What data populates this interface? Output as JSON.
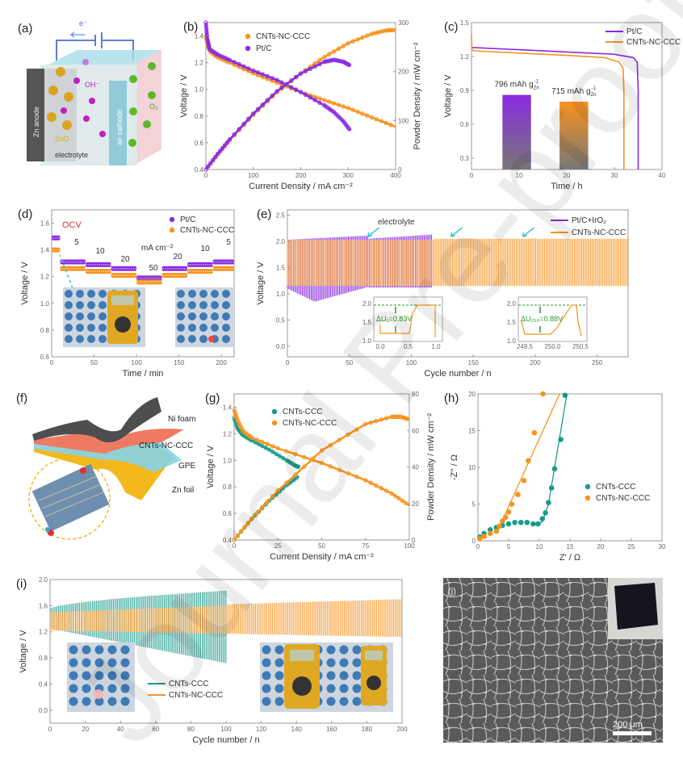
{
  "colors": {
    "orange": "#f7931e",
    "purple": "#8a2be2",
    "teal": "#1a9a8a",
    "axis": "#888888",
    "red_label": "#e03030",
    "green_ann": "#2a9a2a",
    "cyan_arrow": "#35c8e0"
  },
  "watermark": "Journal Pre-proof",
  "panel_a": {
    "label": "(a)",
    "electron": "e⁻",
    "zn_anode": "Zn anode",
    "oh": "OH⁻",
    "zno": "ZnO",
    "air_cathode": "air cathode",
    "o2": "O₂",
    "electrolyte": "electrolyte"
  },
  "panel_f": {
    "label": "(f)",
    "layers": [
      "Ni foam",
      "CNTs-NC-CCC",
      "GPE",
      "Zn foil"
    ]
  },
  "panel_j": {
    "label": "(j)",
    "scale_bar": "200 μm"
  },
  "chart_data": [
    {
      "id": "b",
      "label": "(b)",
      "type": "line",
      "xlabel": "Current Density / mA cm⁻²",
      "ylabel": "Voltage / V",
      "y2label": "Powder Density / mW cm⁻²",
      "xlim": [
        0,
        400
      ],
      "ylim": [
        0.4,
        1.5
      ],
      "y2lim": [
        0,
        300
      ],
      "xticks": [
        "0",
        "100",
        "200",
        "300",
        "400"
      ],
      "yticks": [
        "0.4",
        "0.6",
        "0.8",
        "1.0",
        "1.2",
        "1.4"
      ],
      "y2ticks": [
        "0",
        "100",
        "200",
        "300"
      ],
      "legend": [
        "CNTs-NC-CCC",
        "Pt/C"
      ],
      "series": [
        {
          "name": "CNTs-NC-CCC voltage",
          "axis": "y",
          "color": "orange",
          "x": [
            0,
            5,
            10,
            25,
            50,
            100,
            150,
            200,
            250,
            300,
            350,
            400
          ],
          "y": [
            1.4,
            1.32,
            1.28,
            1.24,
            1.2,
            1.12,
            1.05,
            0.98,
            0.92,
            0.86,
            0.79,
            0.72
          ]
        },
        {
          "name": "Pt/C voltage",
          "axis": "y",
          "color": "purple",
          "x": [
            0,
            3,
            8,
            25,
            50,
            100,
            150,
            200,
            250,
            270,
            290,
            305
          ],
          "y": [
            1.5,
            1.38,
            1.3,
            1.26,
            1.22,
            1.14,
            1.07,
            0.98,
            0.88,
            0.83,
            0.76,
            0.69
          ]
        },
        {
          "name": "CNTs-NC-CCC power",
          "axis": "y2",
          "color": "orange",
          "x": [
            0,
            25,
            50,
            100,
            150,
            200,
            250,
            300,
            350,
            380,
            400
          ],
          "y": [
            0,
            31,
            60,
            112,
            158,
            196,
            230,
            258,
            277,
            284,
            285
          ]
        },
        {
          "name": "Pt/C power",
          "axis": "y2",
          "color": "purple",
          "x": [
            0,
            25,
            50,
            100,
            150,
            200,
            250,
            270,
            290,
            305
          ],
          "y": [
            0,
            32,
            61,
            114,
            160,
            196,
            220,
            224,
            220,
            212
          ]
        }
      ]
    },
    {
      "id": "c",
      "label": "(c)",
      "type": "line",
      "xlabel": "Time / h",
      "ylabel": "Voltage / V",
      "xlim": [
        0,
        40
      ],
      "ylim": [
        0.2,
        1.5
      ],
      "xticks": [
        "0",
        "10",
        "20",
        "30",
        "40"
      ],
      "yticks": [
        "0.3",
        "0.6",
        "0.9",
        "1.2",
        "1.5"
      ],
      "legend": [
        "Pt/C",
        "CNTs-NC-CCC"
      ],
      "series": [
        {
          "name": "Pt/C",
          "color": "purple",
          "x": [
            0,
            10,
            20,
            30,
            34,
            34.8,
            35,
            35
          ],
          "y": [
            1.28,
            1.26,
            1.24,
            1.22,
            1.19,
            1.15,
            0.9,
            0.2
          ]
        },
        {
          "name": "CNTs-NC-CCC",
          "color": "orange",
          "x": [
            0,
            0.1,
            0.5,
            10,
            20,
            28,
            31,
            31.8,
            32,
            32
          ],
          "y": [
            1.4,
            1.26,
            1.25,
            1.23,
            1.21,
            1.19,
            1.15,
            1.1,
            0.9,
            0.2
          ]
        }
      ],
      "bars": [
        {
          "label": "796 mAh g",
          "sub": "Zn",
          "sup": "-1",
          "x": 9.5,
          "value": 0.86,
          "color": "purple"
        },
        {
          "label": "715 mAh g",
          "sub": "Zn",
          "sup": "-1",
          "x": 21.5,
          "value": 0.8,
          "color": "orange"
        }
      ]
    },
    {
      "id": "d",
      "label": "(d)",
      "type": "scatter",
      "xlabel": "Time / min",
      "ylabel": "Voltage / V",
      "xlim": [
        0,
        215
      ],
      "ylim": [
        0.6,
        1.7
      ],
      "xticks": [
        "0",
        "50",
        "100",
        "150",
        "200"
      ],
      "yticks": [
        "0.6",
        "0.8",
        "1.0",
        "1.2",
        "1.4",
        "1.6"
      ],
      "legend": [
        "Pt/C",
        "CNTs-NC-CCC"
      ],
      "annotations": {
        "ocv": "OCV",
        "unit": "mA cm⁻²",
        "steps": [
          "5",
          "10",
          "20",
          "50",
          "20",
          "10",
          "5"
        ]
      },
      "segments_x": [
        [
          0,
          10
        ],
        [
          10,
          40
        ],
        [
          40,
          70
        ],
        [
          70,
          100
        ],
        [
          100,
          130
        ],
        [
          130,
          160
        ],
        [
          160,
          190
        ],
        [
          190,
          215
        ]
      ],
      "series": [
        {
          "name": "Pt/C",
          "color": "purple",
          "y": [
            1.49,
            1.31,
            1.29,
            1.26,
            1.19,
            1.26,
            1.29,
            1.31
          ]
        },
        {
          "name": "CNTs-NC-CCC",
          "color": "orange",
          "y": [
            1.4,
            1.26,
            1.24,
            1.21,
            1.16,
            1.21,
            1.24,
            1.26
          ]
        }
      ]
    },
    {
      "id": "e",
      "label": "(e)",
      "type": "line",
      "xlabel": "Cycle number / n",
      "ylabel": "Voltage / V",
      "xlim": [
        0,
        275
      ],
      "ylim": [
        -0.2,
        2.6
      ],
      "xticks": [
        "0",
        "50",
        "100",
        "150",
        "200",
        "250"
      ],
      "yticks": [
        "0.0",
        "0.5",
        "1.0",
        "1.5",
        "2.0",
        "2.5"
      ],
      "legend": [
        "Pt/C+IrO₂",
        "CNTs-NC-CCC"
      ],
      "annotation": "electrolyte",
      "arrow_cycles": [
        65,
        132,
        190
      ],
      "series": [
        {
          "name": "Pt/C+IrO₂",
          "color": "purple",
          "cycles": [
            0,
            117
          ],
          "charge_top": [
            2.03,
            2.12
          ],
          "discharge_bottom_min": 0.85
        },
        {
          "name": "CNTs-NC-CCC",
          "color": "orange",
          "cycles": [
            0,
            275
          ],
          "charge_top": [
            2.05,
            2.05
          ],
          "discharge_bottom": [
            1.15,
            1.15
          ]
        }
      ],
      "insets": [
        {
          "xticks": [
            "0.0",
            "0.5",
            "1.0"
          ],
          "yticks": [
            "1.0",
            "1.5",
            "2.0"
          ],
          "text": "ΔU₁=0.83V"
        },
        {
          "xticks": [
            "249.5",
            "250.0",
            "250.5"
          ],
          "yticks": [
            "1.0",
            "1.5",
            "2.0"
          ],
          "text": "ΔU₂₅₀=0.88V"
        }
      ]
    },
    {
      "id": "g",
      "label": "(g)",
      "type": "line",
      "xlabel": "Current Density / mA cm⁻²",
      "ylabel": "Voltage / V",
      "y2label": "Powder Density / mW cm⁻²",
      "xlim": [
        0,
        100
      ],
      "ylim": [
        0.4,
        1.5
      ],
      "y2lim": [
        0,
        80
      ],
      "xticks": [
        "0",
        "25",
        "50",
        "75",
        "100"
      ],
      "yticks": [
        "0.4",
        "0.6",
        "0.8",
        "1.0",
        "1.2",
        "1.4"
      ],
      "y2ticks": [
        "0",
        "20",
        "40",
        "60",
        "80"
      ],
      "legend": [
        "CNTs-CCC",
        "CNTs-NC-CCC"
      ],
      "series": [
        {
          "name": "CNTs-CCC voltage",
          "axis": "y",
          "color": "teal",
          "x": [
            0,
            2,
            5,
            10,
            20,
            30,
            35,
            37
          ],
          "y": [
            1.32,
            1.24,
            1.19,
            1.15,
            1.08,
            1.0,
            0.96,
            0.95
          ]
        },
        {
          "name": "CNTs-NC-CCC voltage",
          "axis": "y",
          "color": "orange",
          "x": [
            0,
            2,
            5,
            10,
            25,
            50,
            75,
            90,
            100
          ],
          "y": [
            1.38,
            1.3,
            1.22,
            1.17,
            1.09,
            0.98,
            0.85,
            0.75,
            0.66
          ]
        },
        {
          "name": "CNTs-CCC power",
          "axis": "y2",
          "color": "teal",
          "x": [
            0,
            10,
            20,
            30,
            37
          ],
          "y": [
            0,
            11.5,
            21.5,
            30,
            35
          ]
        },
        {
          "name": "CNTs-NC-CCC power",
          "axis": "y2",
          "color": "orange",
          "x": [
            0,
            10,
            25,
            50,
            75,
            90,
            95,
            100
          ],
          "y": [
            0,
            11.7,
            27,
            49,
            63.5,
            67.5,
            67.5,
            66
          ]
        }
      ]
    },
    {
      "id": "h",
      "label": "(h)",
      "type": "scatter",
      "xlabel": "Z' / Ω",
      "ylabel": "-Z'' / Ω",
      "xlim": [
        0,
        30
      ],
      "ylim": [
        0,
        20
      ],
      "xticks": [
        "0",
        "5",
        "10",
        "15",
        "20",
        "25",
        "30"
      ],
      "yticks": [
        "0",
        "5",
        "10",
        "15",
        "20"
      ],
      "legend": [
        "CNTs-CCC",
        "CNTs-NC-CCC"
      ],
      "series": [
        {
          "name": "CNTs-CCC",
          "color": "teal",
          "x": [
            0.3,
            1,
            2,
            3,
            4,
            5,
            6,
            7,
            8,
            9,
            9.8,
            10.5,
            11,
            11.5,
            12,
            12.5,
            13.5,
            14.2
          ],
          "y": [
            0.5,
            1.0,
            1.5,
            1.8,
            2.1,
            2.3,
            2.5,
            2.5,
            2.5,
            2.3,
            2.3,
            3,
            3.8,
            5.2,
            7.2,
            9.8,
            13.8,
            19.8
          ]
        },
        {
          "name": "CNTs-NC-CCC",
          "color": "orange",
          "x": [
            0.3,
            1,
            2,
            3,
            3.5,
            4,
            4.5,
            5,
            5.5,
            6.5,
            7.5,
            8.2,
            9.2,
            10.6
          ],
          "y": [
            0.3,
            0.6,
            1.0,
            1.3,
            2.0,
            2.7,
            3.2,
            3.9,
            5.0,
            6.3,
            8.2,
            10.9,
            14.7,
            20
          ]
        }
      ],
      "fits": [
        {
          "name": "CNTs-CCC fit",
          "color": "teal",
          "x": [
            9.5,
            10.5,
            11.5,
            14.5
          ],
          "y": [
            2.2,
            2.6,
            5,
            20
          ]
        },
        {
          "name": "CNTs-NC-CCC fit",
          "color": "orange",
          "x": [
            3.3,
            13.3
          ],
          "y": [
            1.5,
            20
          ]
        }
      ]
    },
    {
      "id": "i",
      "label": "(i)",
      "type": "line",
      "xlabel": "Cycle number / n",
      "ylabel": "Voltage / V",
      "xlim": [
        0,
        200
      ],
      "ylim": [
        -0.2,
        2.0
      ],
      "xticks": [
        "0",
        "20",
        "40",
        "60",
        "80",
        "100",
        "120",
        "140",
        "160",
        "180",
        "200"
      ],
      "yticks": [
        "0.0",
        "0.4",
        "0.8",
        "1.2",
        "1.6",
        "2.0"
      ],
      "legend": [
        "CNTs-CCC",
        "CNTs-NC-CCC"
      ],
      "series": [
        {
          "name": "CNTs-CCC",
          "color": "teal",
          "cycles": [
            0,
            100
          ],
          "top": [
            1.55,
            1.83
          ],
          "bottom": [
            1.25,
            0.72
          ]
        },
        {
          "name": "CNTs-NC-CCC",
          "color": "orange",
          "cycles": [
            0,
            200
          ],
          "top": [
            1.5,
            1.7
          ],
          "bottom": [
            1.22,
            1.12
          ]
        }
      ]
    }
  ]
}
